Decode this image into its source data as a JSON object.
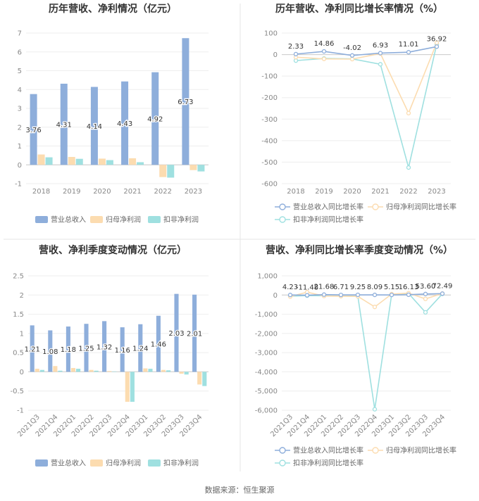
{
  "colors": {
    "revenue": "#8eaedb",
    "net_profit": "#fcdcb0",
    "deducted_profit": "#9fe0e0",
    "title": "#333333",
    "axis_text": "#888888",
    "label_text": "#333333",
    "grid": "#eeeeee",
    "divider": "#e5e5e5"
  },
  "footer": {
    "source": "数据来源：恒生聚源"
  },
  "chart_data": [
    {
      "id": "annual_bar",
      "type": "bar",
      "title": "历年营收、净利情况（亿元）",
      "categories": [
        "2018",
        "2019",
        "2020",
        "2021",
        "2022",
        "2023"
      ],
      "ylim": [
        -1,
        7
      ],
      "yticks": [
        "-1",
        "0",
        "1",
        "2",
        "3",
        "4",
        "5",
        "6",
        "7"
      ],
      "grid": true,
      "legend_position": "bottom",
      "series": [
        {
          "name": "营业总收入",
          "color_key": "revenue",
          "values": [
            3.76,
            4.31,
            4.14,
            4.43,
            4.92,
            6.73
          ],
          "labels": [
            "3.76",
            "4.31",
            "4.14",
            "4.43",
            "4.92",
            "6.73"
          ]
        },
        {
          "name": "归母净利润",
          "color_key": "net_profit",
          "values": [
            0.55,
            0.42,
            0.33,
            0.35,
            -0.65,
            -0.28
          ]
        },
        {
          "name": "扣非净利润",
          "color_key": "deducted_profit",
          "values": [
            0.4,
            0.32,
            0.25,
            0.14,
            -0.68,
            -0.35
          ]
        }
      ]
    },
    {
      "id": "annual_growth",
      "type": "line",
      "title": "历年营收、净利同比增长率情况（%）",
      "categories": [
        "2018",
        "2019",
        "2020",
        "2021",
        "2022",
        "2023"
      ],
      "ylim": [
        -600,
        100
      ],
      "yticks": [
        "-600",
        "-500",
        "-400",
        "-300",
        "-200",
        "-100",
        "0",
        "100"
      ],
      "grid": true,
      "legend_position": "bottom",
      "series": [
        {
          "name": "营业总收入同比增长率",
          "color_key": "revenue",
          "values": [
            2.33,
            14.86,
            -4.02,
            6.93,
            11.01,
            36.92
          ],
          "labels": [
            "2.33",
            "14.86",
            "-4.02",
            "6.93",
            "11.01",
            "36.92"
          ]
        },
        {
          "name": "归母净利润同比增长率",
          "color_key": "net_profit",
          "values": [
            -12,
            -20,
            -21,
            5,
            -272,
            55
          ]
        },
        {
          "name": "扣非净利润同比增长率",
          "color_key": "deducted_profit",
          "values": [
            -28,
            -18,
            -20,
            -45,
            -525,
            48
          ]
        }
      ]
    },
    {
      "id": "quarterly_bar",
      "type": "bar",
      "title": "营收、净利季度变动情况（亿元）",
      "categories": [
        "2021Q3",
        "2021Q4",
        "2022Q1",
        "2022Q2",
        "2022Q3",
        "2022Q4",
        "2023Q1",
        "2023Q2",
        "2023Q3",
        "2023Q4"
      ],
      "ylim": [
        -1,
        2.5
      ],
      "yticks": [
        "-1",
        "-0.5",
        "0",
        "0.5",
        "1",
        "1.5",
        "2",
        "2.5"
      ],
      "grid": true,
      "legend_position": "bottom",
      "series": [
        {
          "name": "营业总收入",
          "color_key": "revenue",
          "values": [
            1.21,
            1.08,
            1.18,
            1.25,
            1.32,
            1.16,
            1.24,
            1.46,
            2.03,
            2.01
          ],
          "labels": [
            "1.21",
            "1.08",
            "1.18",
            "1.25",
            "1.32",
            "1.16",
            "1.24",
            "1.46",
            "2.03",
            "2.01"
          ]
        },
        {
          "name": "归母净利润",
          "color_key": "net_profit",
          "values": [
            0.08,
            0.15,
            0.1,
            0.05,
            0.02,
            -0.78,
            0.09,
            0.05,
            -0.05,
            -0.33
          ]
        },
        {
          "name": "扣非净利润",
          "color_key": "deducted_profit",
          "values": [
            0.05,
            0.03,
            0.08,
            0.03,
            0.01,
            -0.78,
            0.08,
            0.04,
            -0.07,
            -0.37
          ]
        }
      ]
    },
    {
      "id": "quarterly_growth",
      "type": "line",
      "title": "营收、净利同比增长率季度变动情况（%）",
      "categories": [
        "2021Q3",
        "2021Q4",
        "2022Q1",
        "2022Q2",
        "2022Q3",
        "2022Q4",
        "2023Q1",
        "2023Q2",
        "2023Q3",
        "2023Q4"
      ],
      "ylim": [
        -6000,
        1000
      ],
      "yticks": [
        "-6,000",
        "-5,000",
        "-4,000",
        "-3,000",
        "-2,000",
        "-1,000",
        "0",
        "1,000"
      ],
      "grid": true,
      "legend_position": "bottom",
      "series": [
        {
          "name": "营业总收入同比增长率",
          "color_key": "revenue",
          "values": [
            4.23,
            -11.48,
            21.68,
            6.71,
            9.25,
            8.09,
            5.15,
            16.13,
            53.6,
            72.49
          ],
          "labels": [
            "4.23",
            "-11.48",
            "21.68",
            "6.71",
            "9.25",
            "8.09",
            "5.15",
            "16.13",
            "53.60",
            "72.49"
          ]
        },
        {
          "name": "归母净利润同比增长率",
          "color_key": "net_profit",
          "values": [
            -80,
            150,
            -50,
            -60,
            -70,
            -620,
            50,
            100,
            -200,
            80
          ]
        },
        {
          "name": "扣非净利润同比增长率",
          "color_key": "deducted_profit",
          "values": [
            -60,
            -30,
            -40,
            -50,
            -60,
            -5950,
            30,
            80,
            -900,
            60
          ]
        }
      ]
    }
  ]
}
